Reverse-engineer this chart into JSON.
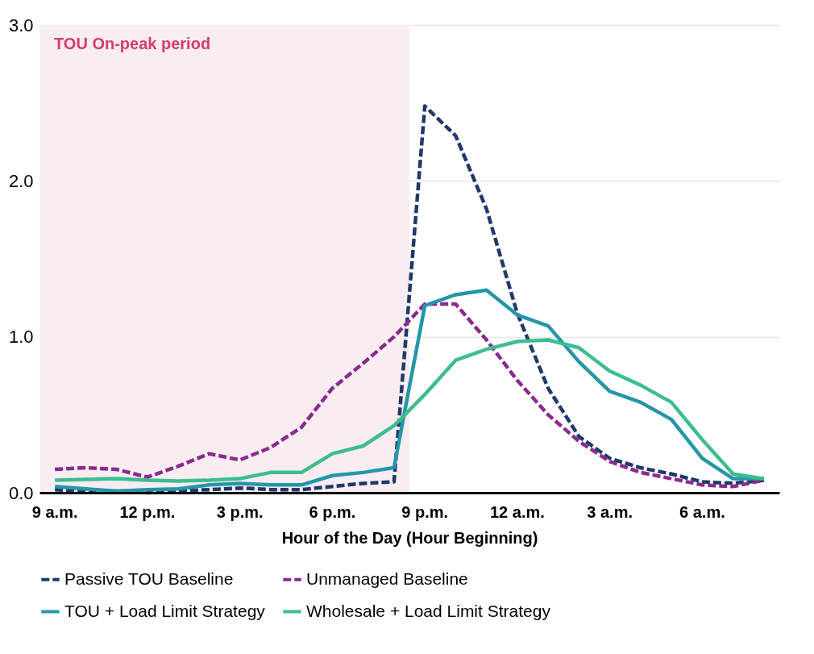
{
  "chart_data": {
    "type": "line",
    "xlabel": "Hour of the Day (Hour Beginning)",
    "categories": [
      "9 a.m.",
      null,
      null,
      "12 p.m.",
      null,
      null,
      "3 p.m.",
      null,
      null,
      "6 p.m.",
      null,
      null,
      "9 p.m.",
      null,
      null,
      "12 a.m.",
      null,
      null,
      "3 a.m.",
      null,
      null,
      "6 a.m.",
      null,
      null
    ],
    "ylim": [
      0,
      3
    ],
    "yticks": [
      {
        "value": 0,
        "label": "0.0"
      },
      {
        "value": 1,
        "label": "1.0"
      },
      {
        "value": 2,
        "label": "2.0"
      },
      {
        "value": 3,
        "label": "3.0"
      }
    ],
    "grid": "y",
    "legend": "bottom",
    "marker": "none",
    "bands": [
      {
        "axis": "x",
        "from": "9 a.m.",
        "to": "9 p.m.",
        "label": "TOU On-peak period",
        "color": "#f9edf2"
      }
    ],
    "series": [
      {
        "name": "Passive TOU Baseline",
        "color": "#1f3a68",
        "line_style": "dashed",
        "values": [
          0.02,
          0.01,
          0.01,
          0.0,
          0.01,
          0.02,
          0.03,
          0.02,
          0.02,
          0.04,
          0.06,
          0.07,
          2.48,
          2.29,
          1.82,
          1.15,
          0.67,
          0.36,
          0.22,
          0.16,
          0.12,
          0.07,
          0.06,
          0.08
        ]
      },
      {
        "name": "Unmanaged Baseline",
        "color": "#8b2a8f",
        "line_style": "dashed",
        "values": [
          0.15,
          0.16,
          0.15,
          0.1,
          0.17,
          0.25,
          0.21,
          0.29,
          0.42,
          0.67,
          0.83,
          1.0,
          1.21,
          1.21,
          0.98,
          0.72,
          0.5,
          0.33,
          0.2,
          0.13,
          0.09,
          0.05,
          0.04,
          0.08
        ]
      },
      {
        "name": "TOU + Load Limit Strategy",
        "color": "#2596a8",
        "line_style": "solid",
        "values": [
          0.04,
          0.025,
          0.01,
          0.02,
          0.025,
          0.05,
          0.06,
          0.05,
          0.05,
          0.11,
          0.13,
          0.16,
          1.2,
          1.27,
          1.3,
          1.14,
          1.07,
          0.84,
          0.65,
          0.58,
          0.47,
          0.22,
          0.09,
          0.09
        ]
      },
      {
        "name": "Wholesale + Load Limit Strategy",
        "color": "#3dbd8f",
        "line_style": "solid",
        "values": [
          0.08,
          0.085,
          0.09,
          0.08,
          0.075,
          0.08,
          0.09,
          0.13,
          0.13,
          0.25,
          0.3,
          0.43,
          0.63,
          0.85,
          0.92,
          0.97,
          0.98,
          0.93,
          0.78,
          0.69,
          0.58,
          0.34,
          0.12,
          0.09
        ]
      }
    ]
  }
}
